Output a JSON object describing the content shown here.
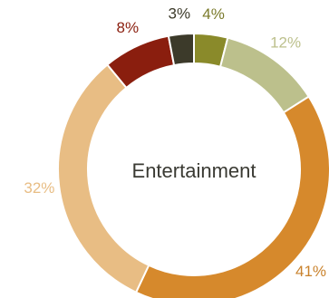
{
  "chart_data": {
    "type": "pie",
    "donut": true,
    "center_label": "Entertainment",
    "slices": [
      {
        "label": "4%",
        "value": 4,
        "color": "#8a8a2a"
      },
      {
        "label": "12%",
        "value": 12,
        "color": "#bcc08c"
      },
      {
        "label": "41%",
        "value": 41,
        "color": "#d6892c"
      },
      {
        "label": "32%",
        "value": 32,
        "color": "#e8bd84"
      },
      {
        "label": "8%",
        "value": 8,
        "color": "#8a1e0e"
      },
      {
        "label": "3%",
        "value": 3,
        "color": "#3c3a2a"
      }
    ],
    "label_colors": [
      "#7a7a2a",
      "#bcc08c",
      "#c9822c",
      "#e8bd84",
      "#8a1e0e",
      "#3c3a2a"
    ]
  }
}
